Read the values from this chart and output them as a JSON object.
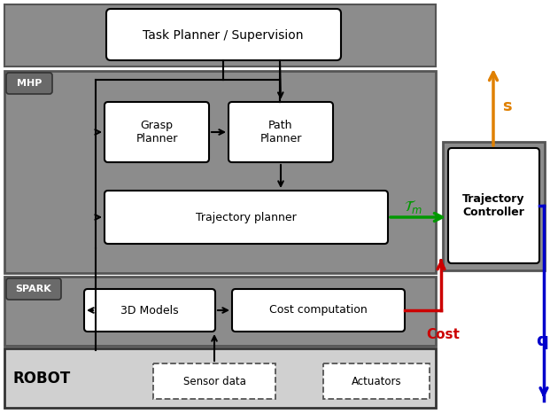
{
  "bg_color": "#ffffff",
  "panel_gray": "#8c8c8c",
  "panel_border": "#555555",
  "white": "#ffffff",
  "black": "#000000",
  "green": "#009900",
  "red": "#cc0000",
  "blue": "#0000cc",
  "orange": "#e08000",
  "robot_bg": "#d0d0d0",
  "badge_gray": "#6a6a6a",
  "title": "Task Planner / Supervision",
  "grasp_planner": "Grasp\nPlanner",
  "path_planner": "Path\nPlanner",
  "traj_planner": "Trajectory planner",
  "traj_controller": "Trajectory\nController",
  "models_3d": "3D Models",
  "cost_comp": "Cost computation",
  "sensor_data": "Sensor data",
  "actuators": "Actuators",
  "mhp_label": "MHP",
  "spark_label": "SPARK",
  "robot_label": "ROBOT",
  "tm_label": "$\\mathcal{T}_m$",
  "s_label": "s",
  "cost_label": "Cost",
  "q_label": "q"
}
